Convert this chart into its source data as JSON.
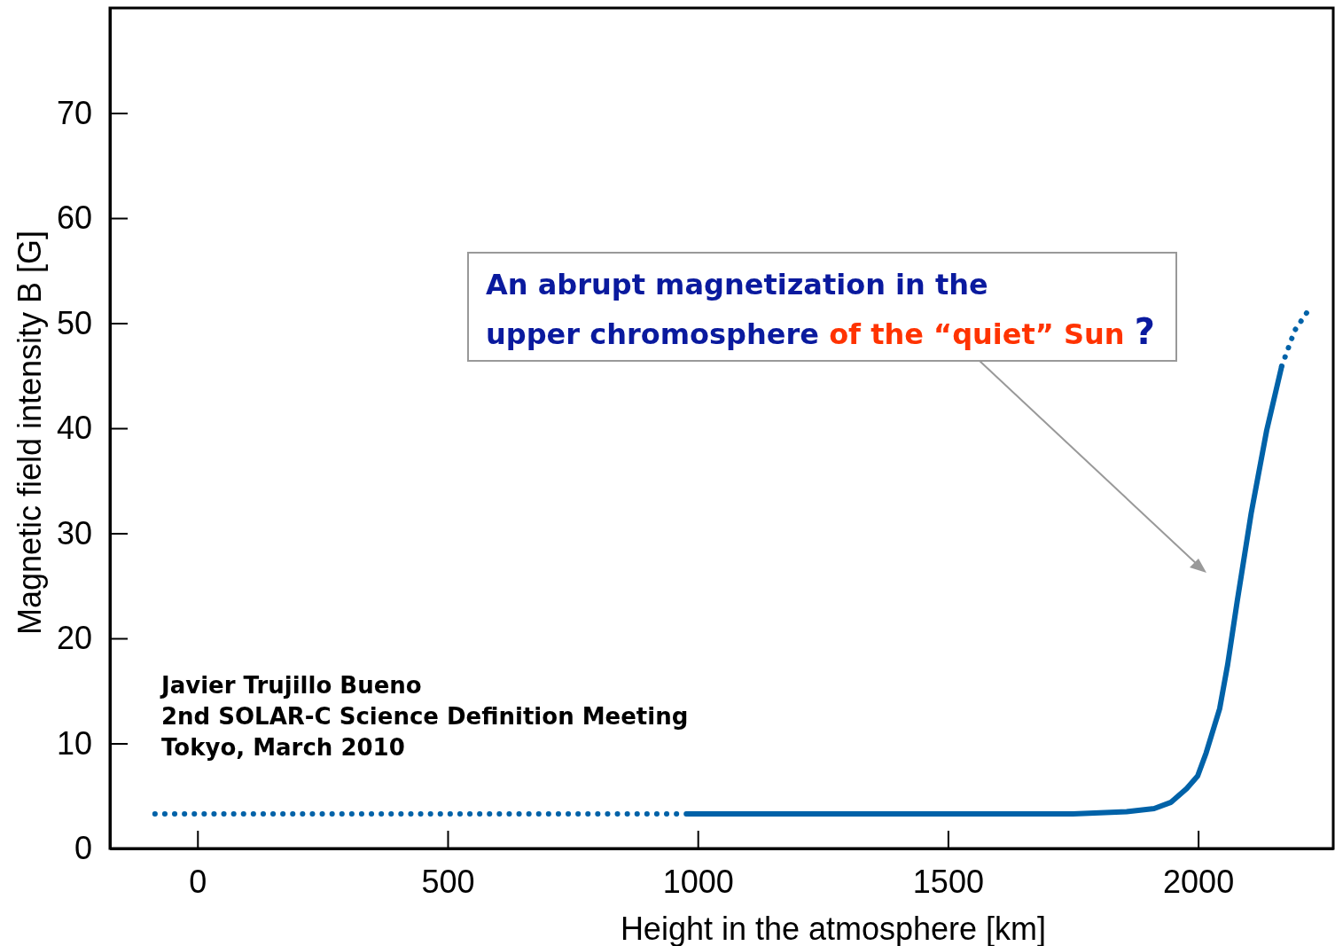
{
  "chart_data": {
    "type": "line",
    "xlabel": "Height in the atmosphere [km]",
    "ylabel": "Magnetic field intensity B [G]",
    "xlim": [
      -175,
      2270
    ],
    "ylim": [
      0,
      80
    ],
    "xticks": [
      0,
      500,
      1000,
      1500,
      2000
    ],
    "yticks": [
      0,
      10,
      20,
      30,
      40,
      50,
      60,
      70
    ],
    "grid": false,
    "legend": false,
    "series": [
      {
        "color": "#0062a8",
        "line_style": "dotted",
        "x": [
          -85,
          980
        ],
        "values": [
          3.3,
          3.3
        ]
      },
      {
        "color": "#0062a8",
        "line_style": "solid",
        "x": [
          980,
          1200,
          1500,
          1750,
          1857,
          1912,
          1946,
          1977,
          1999,
          2016,
          2043,
          2059,
          2078,
          2106,
          2137,
          2167
        ],
        "values": [
          3.3,
          3.3,
          3.3,
          3.3,
          3.5,
          3.8,
          4.4,
          5.7,
          6.9,
          9.1,
          13.3,
          17.5,
          23.5,
          31.9,
          39.8,
          45.9
        ]
      },
      {
        "color": "#0062a8",
        "line_style": "dotted",
        "x": [
          2167,
          2193,
          2220
        ],
        "values": [
          45.9,
          49.3,
          51.2
        ]
      }
    ],
    "annotations": [
      "An abrupt magnetization in the upper chromosphere of the “quiet” Sun ?",
      "Javier Trujillo Bueno",
      "2nd SOLAR-C Science Definition Meeting",
      "Tokyo, March 2010"
    ]
  }
}
